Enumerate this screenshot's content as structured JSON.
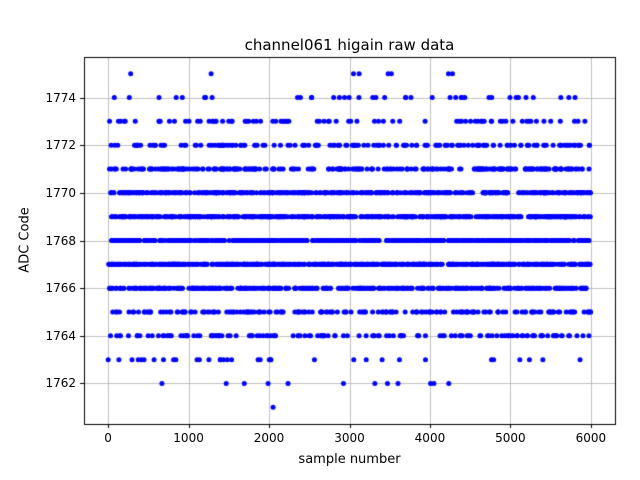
{
  "chart_data": {
    "type": "scatter",
    "title": "channel061 higain raw data",
    "xlabel": "sample number",
    "ylabel": "ADC Code",
    "xlim": [
      -300,
      6300
    ],
    "ylim": [
      1760.3,
      1775.7
    ],
    "xticks": [
      0,
      1000,
      2000,
      3000,
      4000,
      5000,
      6000
    ],
    "yticks": [
      1762,
      1764,
      1766,
      1768,
      1770,
      1772,
      1774
    ],
    "grid": true,
    "grid_color": "#b0b0b0",
    "frame_color": "#000000",
    "marker_color": "#0000ff",
    "marker_diameter_px": 5,
    "x_sample_range": [
      0,
      6000
    ],
    "levels": [
      {
        "adc": 1774,
        "approx_count": 40
      },
      {
        "adc": 1773,
        "approx_count": 80
      },
      {
        "adc": 1772,
        "approx_count": 150
      },
      {
        "adc": 1771,
        "approx_count": 270
      },
      {
        "adc": 1770,
        "approx_count": 420
      },
      {
        "adc": 1769,
        "approx_count": 500
      },
      {
        "adc": 1768,
        "approx_count": 500
      },
      {
        "adc": 1767,
        "approx_count": 520
      },
      {
        "adc": 1766,
        "approx_count": 400
      },
      {
        "adc": 1765,
        "approx_count": 180
      },
      {
        "adc": 1764,
        "approx_count": 140
      },
      {
        "adc": 1763,
        "approx_count": 35
      },
      {
        "adc": 1762,
        "approx_count": 12
      }
    ],
    "extra_points": [
      [
        280,
        1775
      ],
      [
        1280,
        1775
      ],
      [
        3050,
        1775
      ],
      [
        3120,
        1775
      ],
      [
        3480,
        1775
      ],
      [
        3520,
        1775
      ],
      [
        4230,
        1775
      ],
      [
        4280,
        1775
      ],
      [
        2050,
        1761
      ]
    ]
  }
}
